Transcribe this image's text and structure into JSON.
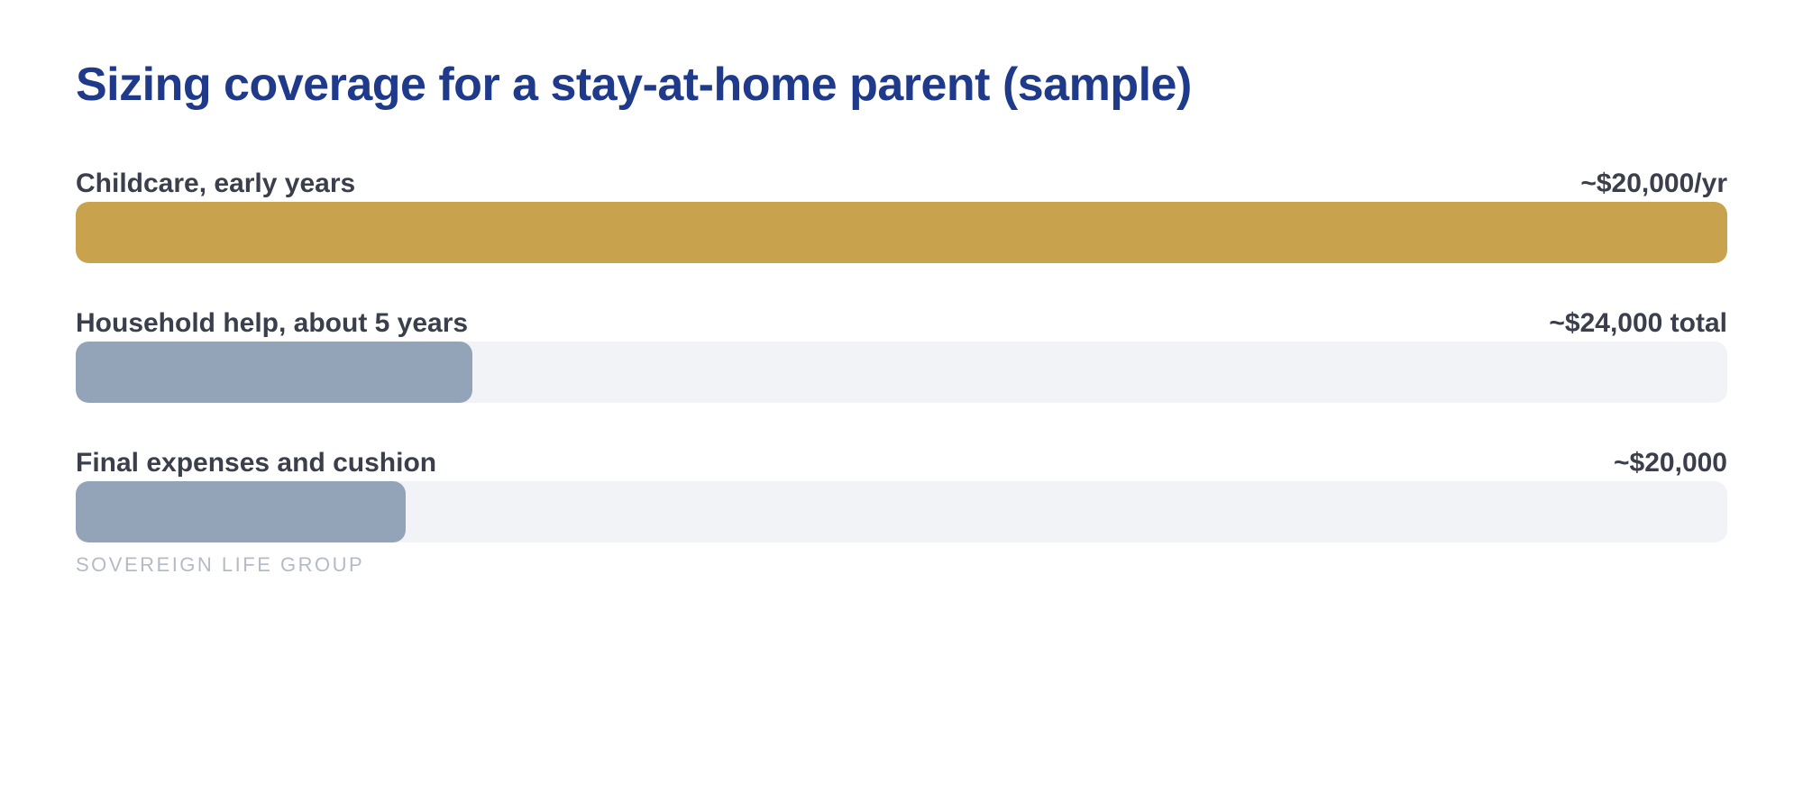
{
  "title": "Sizing coverage for a stay-at-home parent (sample)",
  "footer": "SOVEREIGN LIFE GROUP",
  "colors": {
    "title": "#1f3a8a",
    "highlight_bar": "#c9a24d",
    "muted_bar": "#93a3b8",
    "track": "#f1f3f7",
    "label_text": "#3a3f4b",
    "footer_text": "#b4bac6"
  },
  "chart_data": {
    "type": "bar",
    "orientation": "horizontal",
    "title": "Sizing coverage for a stay-at-home parent (sample)",
    "categories": [
      "Childcare, early years",
      "Household help, about 5 years",
      "Final expenses and cushion"
    ],
    "value_labels": [
      "~$20,000/yr",
      "~$24,000 total",
      "~$20,000"
    ],
    "fill_fractions": [
      1.0,
      0.24,
      0.2
    ],
    "bar_colors": [
      "#c9a24d",
      "#93a3b8",
      "#93a3b8"
    ],
    "grid": false,
    "legend": "none"
  }
}
